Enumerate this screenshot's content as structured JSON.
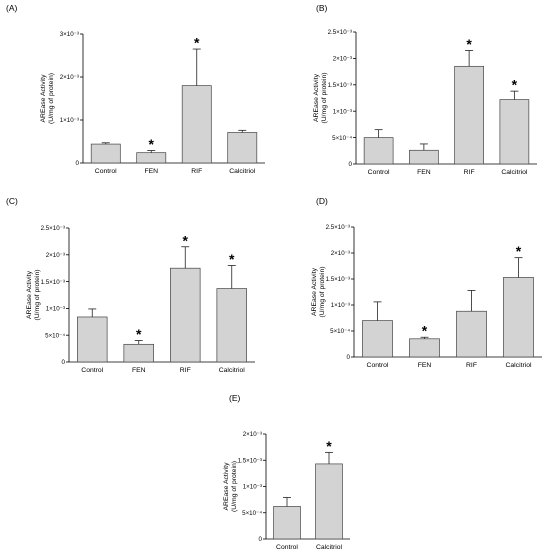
{
  "figure": {
    "colors": {
      "bar_fill": "#d3d3d3",
      "bar_stroke": "#444444",
      "axis": "#000000"
    },
    "panels": [
      {
        "label": "(A)",
        "chart_data": {
          "type": "bar",
          "categories": [
            "Control",
            "FEN",
            "RIF",
            "Calcitriol"
          ],
          "values": [
            0.00044,
            0.00024,
            0.0018,
            0.00071
          ],
          "errors": [
            3e-05,
            5e-05,
            0.00085,
            5e-05
          ],
          "significant": [
            "",
            "*",
            "*",
            ""
          ],
          "ylabel_line1": "AREase Activity",
          "ylabel_line2": "(U/mg of protein)",
          "ylim": [
            0,
            0.003
          ],
          "ytick_labels": [
            "0",
            "1×10⁻³",
            "2×10⁻³",
            "3×10⁻³"
          ],
          "ytick_values": [
            0,
            0.001,
            0.002,
            0.003
          ]
        }
      },
      {
        "label": "(B)",
        "chart_data": {
          "type": "bar",
          "categories": [
            "Control",
            "FEN",
            "RIF",
            "Calcitriol"
          ],
          "values": [
            0.0005,
            0.00026,
            0.00185,
            0.00122
          ],
          "errors": [
            0.00015,
            0.00012,
            0.0003,
            0.00016
          ],
          "significant": [
            "",
            "",
            "*",
            "*"
          ],
          "ylabel_line1": "AREase Activity",
          "ylabel_line2": "(U/mg of protein)",
          "ylim": [
            0,
            0.0025
          ],
          "ytick_labels": [
            "0",
            "5×10⁻⁴",
            "1×10⁻³",
            "1.5×10⁻³",
            "2×10⁻³",
            "2.5×10⁻³"
          ],
          "ytick_values": [
            0,
            0.0005,
            0.001,
            0.0015,
            0.002,
            0.0025
          ]
        }
      },
      {
        "label": "(C)",
        "chart_data": {
          "type": "bar",
          "categories": [
            "Control",
            "FEN",
            "RIF",
            "Calcitriol"
          ],
          "values": [
            0.00084,
            0.00033,
            0.00175,
            0.00137
          ],
          "errors": [
            0.00015,
            7e-05,
            0.0004,
            0.00043
          ],
          "significant": [
            "",
            "*",
            "*",
            "*"
          ],
          "ylabel_line1": "AREase Activity",
          "ylabel_line2": "(U/mg of protein)",
          "ylim": [
            0,
            0.0025
          ],
          "ytick_labels": [
            "0",
            "5×10⁻⁴",
            "1×10⁻³",
            "1.5×10⁻³",
            "2×10⁻³",
            "2.5×10⁻³"
          ],
          "ytick_values": [
            0,
            0.0005,
            0.001,
            0.0015,
            0.002,
            0.0025
          ]
        }
      },
      {
        "label": "(D)",
        "chart_data": {
          "type": "bar",
          "categories": [
            "Control",
            "FEN",
            "RIF",
            "Calcitriol"
          ],
          "values": [
            0.0007,
            0.00035,
            0.00088,
            0.00153
          ],
          "errors": [
            0.00036,
            3e-05,
            0.0004,
            0.00038
          ],
          "significant": [
            "",
            "*",
            "",
            "*"
          ],
          "ylabel_line1": "AREase Activity",
          "ylabel_line2": "(U/mg of protein)",
          "ylim": [
            0,
            0.0025
          ],
          "ytick_labels": [
            "0",
            "5×10⁻⁴",
            "1×10⁻³",
            "1.5×10⁻³",
            "2×10⁻³",
            "2.5×10⁻³"
          ],
          "ytick_values": [
            0,
            0.0005,
            0.001,
            0.0015,
            0.002,
            0.0025
          ]
        }
      },
      {
        "label": "(E)",
        "chart_data": {
          "type": "bar",
          "categories": [
            "Control",
            "Calcitriol"
          ],
          "values": [
            0.00062,
            0.00143
          ],
          "errors": [
            0.00017,
            0.00022
          ],
          "significant": [
            "",
            "*"
          ],
          "ylabel_line1": "AREase Activity",
          "ylabel_line2": "(U/mg of protein)",
          "ylim": [
            0,
            0.002
          ],
          "ytick_labels": [
            "0",
            "5×10⁻⁴",
            "1×10⁻³",
            "1.5×10⁻³",
            "2×10⁻³"
          ],
          "ytick_values": [
            0,
            0.0005,
            0.001,
            0.0015,
            0.002
          ]
        }
      }
    ]
  }
}
